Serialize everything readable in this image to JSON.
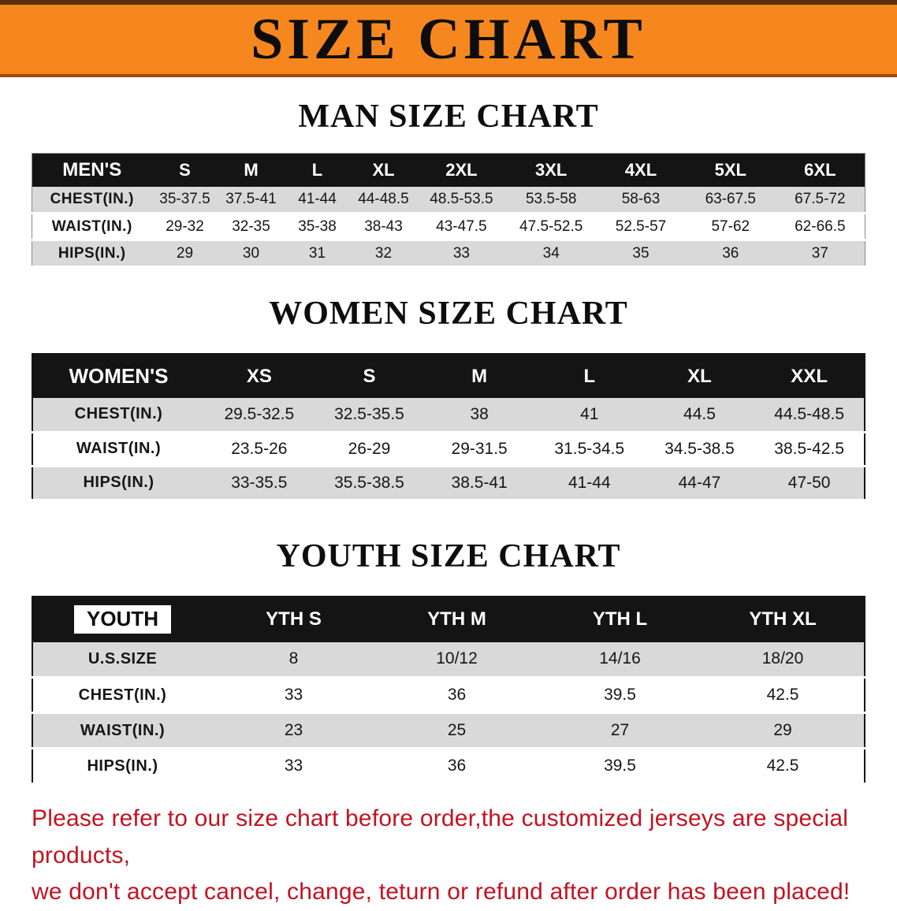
{
  "banner": {
    "title": "SIZE CHART"
  },
  "colors": {
    "banner_orange": "#f6871f",
    "header_black": "#141414",
    "row_gray": "#d9d9d9",
    "disclaimer_red": "#c21322"
  },
  "sections": [
    {
      "id": "men",
      "heading": "MAN SIZE CHART",
      "label_boxed": false,
      "table": {
        "header": [
          "MEN'S",
          "S",
          "M",
          "L",
          "XL",
          "2XL",
          "3XL",
          "4XL",
          "5XL",
          "6XL"
        ],
        "rows": [
          [
            "CHEST(IN.)",
            "35-37.5",
            "37.5-41",
            "41-44",
            "44-48.5",
            "48.5-53.5",
            "53.5-58",
            "58-63",
            "63-67.5",
            "67.5-72"
          ],
          [
            "WAIST(IN.)",
            "29-32",
            "32-35",
            "35-38",
            "38-43",
            "43-47.5",
            "47.5-52.5",
            "52.5-57",
            "57-62",
            "62-66.5"
          ],
          [
            "HIPS(IN.)",
            "29",
            "30",
            "31",
            "32",
            "33",
            "34",
            "35",
            "36",
            "37"
          ]
        ]
      }
    },
    {
      "id": "women",
      "heading": "WOMEN SIZE CHART",
      "label_boxed": false,
      "table": {
        "header": [
          "WOMEN'S",
          "XS",
          "S",
          "M",
          "L",
          "XL",
          "XXL"
        ],
        "rows": [
          [
            "CHEST(IN.)",
            "29.5-32.5",
            "32.5-35.5",
            "38",
            "41",
            "44.5",
            "44.5-48.5"
          ],
          [
            "WAIST(IN.)",
            "23.5-26",
            "26-29",
            "29-31.5",
            "31.5-34.5",
            "34.5-38.5",
            "38.5-42.5"
          ],
          [
            "HIPS(IN.)",
            "33-35.5",
            "35.5-38.5",
            "38.5-41",
            "41-44",
            "44-47",
            "47-50"
          ]
        ]
      }
    },
    {
      "id": "youth",
      "heading": "YOUTH SIZE CHART",
      "label_boxed": true,
      "table": {
        "header": [
          "YOUTH",
          "YTH S",
          "YTH M",
          "YTH L",
          "YTH XL"
        ],
        "rows": [
          [
            "U.S.SIZE",
            "8",
            "10/12",
            "14/16",
            "18/20"
          ],
          [
            "CHEST(IN.)",
            "33",
            "36",
            "39.5",
            "42.5"
          ],
          [
            "WAIST(IN.)",
            "23",
            "25",
            "27",
            "29"
          ],
          [
            "HIPS(IN.)",
            "33",
            "36",
            "39.5",
            "42.5"
          ]
        ]
      }
    }
  ],
  "disclaimer": {
    "lines": [
      "Please refer to our size chart before order,the customized jerseys are special products,",
      "we don't accept cancel, change, teturn or refund after order has been placed!"
    ]
  }
}
